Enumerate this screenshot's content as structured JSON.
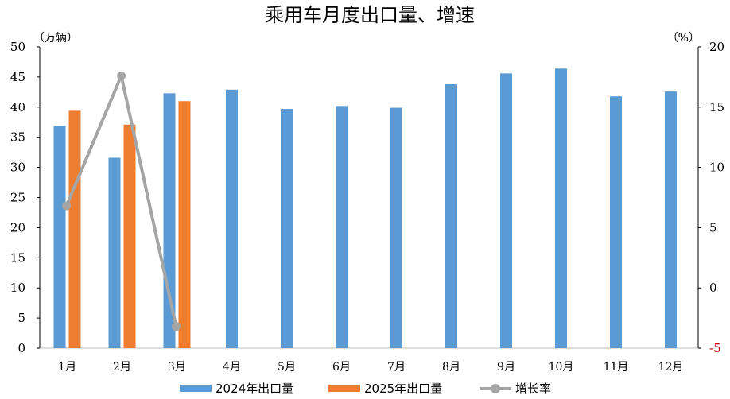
{
  "chart_data": {
    "type": "bar",
    "title": "乘用车月度出口量、增速",
    "left_unit": "（万辆）",
    "right_unit": "（%）",
    "categories": [
      "1月",
      "2月",
      "3月",
      "4月",
      "5月",
      "6月",
      "7月",
      "8月",
      "9月",
      "10月",
      "11月",
      "12月"
    ],
    "series": [
      {
        "name": "2024年出口量",
        "type": "bar",
        "axis": "left",
        "color": "#5b9bd5",
        "values": [
          36.9,
          31.6,
          42.3,
          42.9,
          39.7,
          40.2,
          39.9,
          43.8,
          45.6,
          46.4,
          41.8,
          42.6
        ]
      },
      {
        "name": "2025年出口量",
        "type": "bar",
        "axis": "left",
        "color": "#ed7d31",
        "values": [
          39.4,
          37.1,
          41.0,
          null,
          null,
          null,
          null,
          null,
          null,
          null,
          null,
          null
        ]
      },
      {
        "name": "增长率",
        "type": "line",
        "axis": "right",
        "color": "#a5a5a5",
        "values": [
          6.8,
          17.6,
          -3.2,
          null,
          null,
          null,
          null,
          null,
          null,
          null,
          null,
          null
        ]
      }
    ],
    "left_axis": {
      "ylim": [
        0,
        50
      ],
      "ticks": [
        "0",
        "5",
        "10",
        "15",
        "20",
        "25",
        "30",
        "35",
        "40",
        "45",
        "50"
      ]
    },
    "right_axis": {
      "ylim": [
        -5,
        20
      ],
      "ticks": [
        "-5",
        "0",
        "5",
        "10",
        "15",
        "20"
      ]
    },
    "grid": false,
    "legend_position": "bottom"
  }
}
